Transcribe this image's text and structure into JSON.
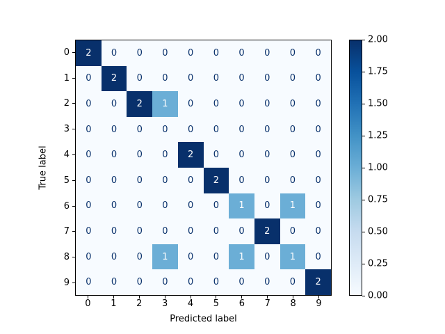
{
  "figure": {
    "background": "#ffffff"
  },
  "chart_data": {
    "type": "heatmap",
    "title": "",
    "xlabel": "Predicted label",
    "ylabel": "True label",
    "x_ticklabels": [
      "0",
      "1",
      "2",
      "3",
      "4",
      "5",
      "6",
      "7",
      "8",
      "9"
    ],
    "y_ticklabels": [
      "0",
      "1",
      "2",
      "3",
      "4",
      "5",
      "6",
      "7",
      "8",
      "9"
    ],
    "matrix": [
      [
        2,
        0,
        0,
        0,
        0,
        0,
        0,
        0,
        0,
        0
      ],
      [
        0,
        2,
        0,
        0,
        0,
        0,
        0,
        0,
        0,
        0
      ],
      [
        0,
        0,
        2,
        1,
        0,
        0,
        0,
        0,
        0,
        0
      ],
      [
        0,
        0,
        0,
        0,
        0,
        0,
        0,
        0,
        0,
        0
      ],
      [
        0,
        0,
        0,
        0,
        2,
        0,
        0,
        0,
        0,
        0
      ],
      [
        0,
        0,
        0,
        0,
        0,
        2,
        0,
        0,
        0,
        0
      ],
      [
        0,
        0,
        0,
        0,
        0,
        0,
        1,
        0,
        1,
        0
      ],
      [
        0,
        0,
        0,
        0,
        0,
        0,
        0,
        2,
        0,
        0
      ],
      [
        0,
        0,
        0,
        1,
        0,
        0,
        1,
        0,
        1,
        0
      ],
      [
        0,
        0,
        0,
        0,
        0,
        0,
        0,
        0,
        0,
        2
      ]
    ],
    "vmin": 0,
    "vmax": 2,
    "colormap": "Blues",
    "text_threshold": 1,
    "cell_text_light": "#ffffff",
    "cell_text_dark": "#08306b",
    "value_colors": {
      "0": "#f7fbff",
      "1": "#6baed6",
      "2": "#08306b"
    },
    "colorbar": {
      "ticks": [
        "2.00",
        "1.75",
        "1.50",
        "1.25",
        "1.00",
        "0.75",
        "0.50",
        "0.25",
        "0.00"
      ],
      "gradient_stops_bottom_to_top": [
        "#f7fbff",
        "#deebf7",
        "#c6dbef",
        "#9ecae1",
        "#6baed6",
        "#4292c6",
        "#2171b5",
        "#08519c",
        "#08306b"
      ]
    }
  }
}
